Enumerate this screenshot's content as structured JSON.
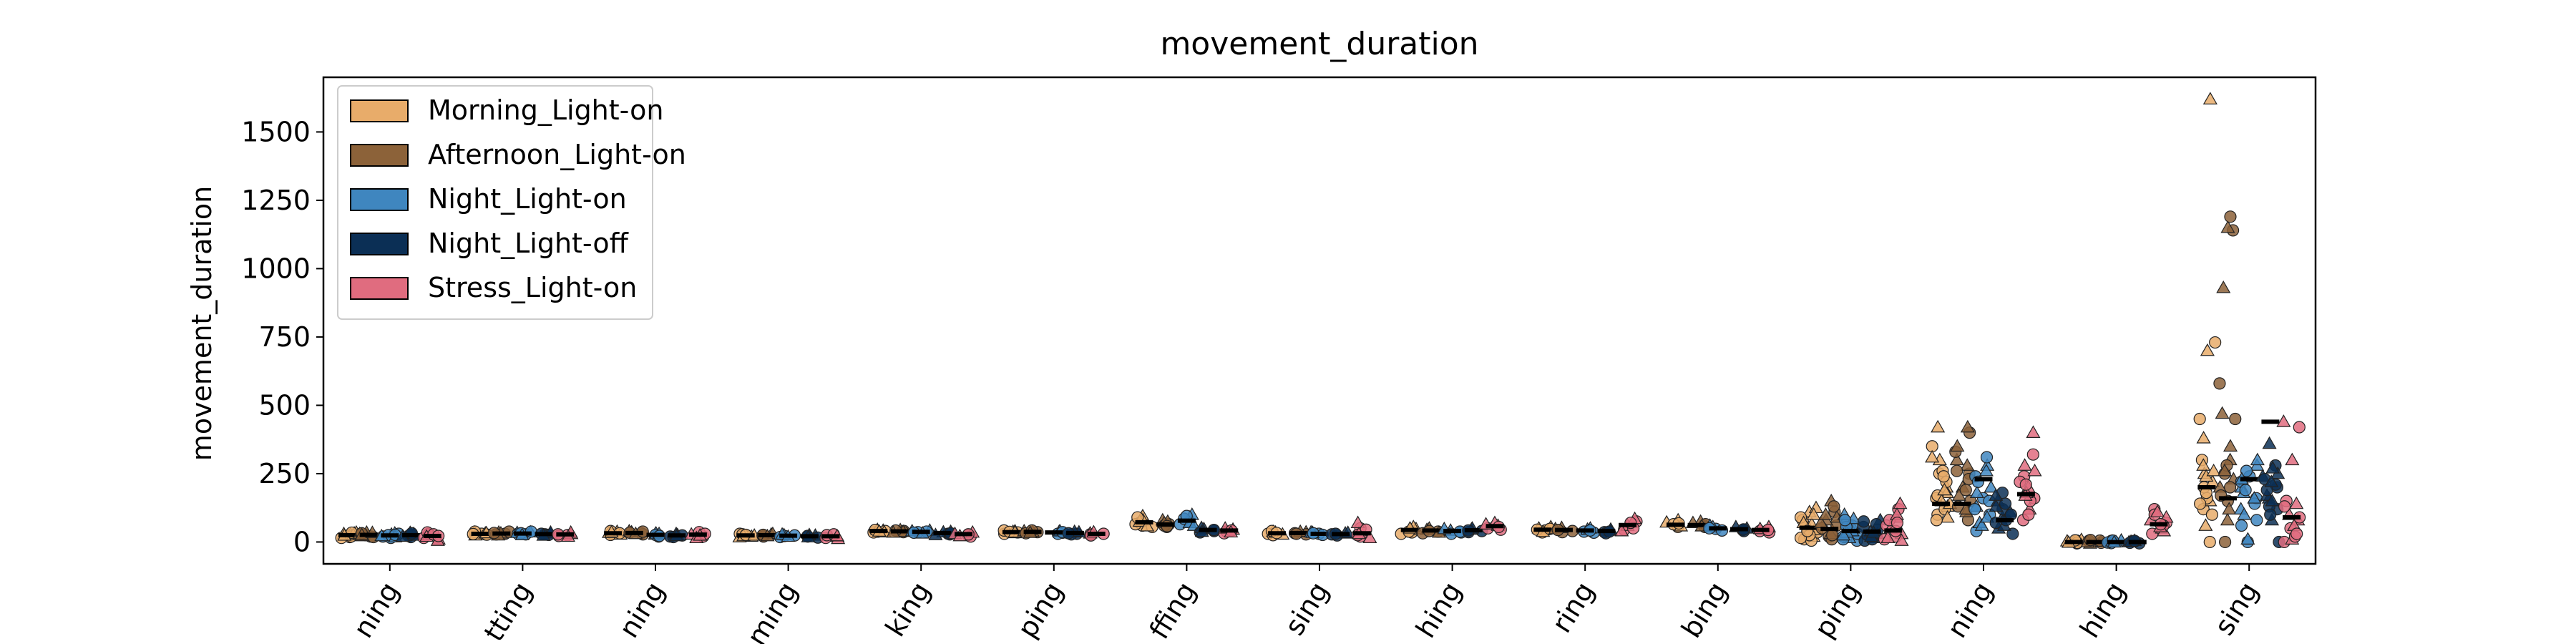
{
  "chart_data": {
    "type": "scatter",
    "title": "movement_duration",
    "xlabel": "",
    "ylabel": "movement_duration",
    "ylim": [
      -80,
      1700
    ],
    "yticks": [
      0,
      250,
      500,
      750,
      1000,
      1250,
      1500
    ],
    "grid": false,
    "legend_position": "top-left",
    "categories": [
      "ning",
      "tting",
      "ning",
      "ming",
      "king",
      "ping",
      "ffing",
      "sing",
      "hing",
      "ring",
      "bing",
      "ping",
      "ning",
      "hing",
      "sing"
    ],
    "series": [
      {
        "name": "Morning_Light-on",
        "color": "#e8ac6a",
        "values": [
          [
            22,
            30,
            18,
            35,
            25,
            28,
            15,
            32,
            20,
            26,
            34,
            24
          ],
          [
            28,
            35,
            30,
            25,
            38,
            32,
            27,
            33,
            29
          ],
          [
            30,
            38,
            26,
            34,
            40,
            28,
            32,
            36
          ],
          [
            25,
            20,
            30,
            18,
            28,
            22,
            26,
            24
          ],
          [
            38,
            42,
            35,
            45,
            40,
            36,
            44,
            39
          ],
          [
            35,
            40,
            30,
            38,
            42,
            33,
            37,
            36
          ],
          [
            70,
            85,
            60,
            95,
            55,
            80,
            65,
            75,
            90,
            58
          ],
          [
            30,
            38,
            25,
            35,
            40,
            28,
            33
          ],
          [
            40,
            48,
            35,
            55,
            30,
            45,
            38,
            50
          ],
          [
            42,
            50,
            35,
            55,
            45,
            38,
            48
          ],
          [
            60,
            72,
            55,
            80,
            65,
            58,
            68
          ],
          [
            10,
            20,
            35,
            55,
            80,
            110,
            5,
            45,
            25,
            65,
            90,
            125,
            15,
            70,
            40,
            100
          ],
          [
            100,
            130,
            160,
            200,
            250,
            300,
            350,
            420,
            120,
            180,
            220,
            140,
            260,
            90,
            170,
            310,
            80,
            150,
            240,
            190
          ],
          [
            -5,
            0,
            5,
            8,
            -3,
            3,
            6,
            -2
          ],
          [
            0,
            60,
            120,
            150,
            200,
            250,
            300,
            380,
            450,
            700,
            730,
            1620,
            160,
            220,
            100,
            280,
            180,
            240,
            140,
            260
          ]
        ],
        "medians": [
          25,
          30,
          32,
          24,
          40,
          36,
          72,
          32,
          44,
          45,
          63,
          52,
          140,
          0,
          200
        ]
      },
      {
        "name": "Afternoon_Light-on",
        "color": "#8c6239",
        "values": [
          [
            25,
            30,
            20,
            35,
            28,
            22,
            32,
            26,
            18,
            34
          ],
          [
            30,
            35,
            28,
            32,
            38,
            25,
            33
          ],
          [
            32,
            36,
            28,
            40,
            34,
            30,
            38
          ],
          [
            24,
            28,
            20,
            30,
            26,
            22
          ],
          [
            40,
            44,
            36,
            38,
            42,
            35
          ],
          [
            36,
            40,
            32,
            38,
            42,
            34
          ],
          [
            65,
            75,
            55,
            80,
            60,
            70,
            58
          ],
          [
            32,
            36,
            28,
            38,
            30
          ],
          [
            38,
            45,
            32,
            50,
            40,
            35
          ],
          [
            40,
            48,
            36,
            52,
            44
          ],
          [
            60,
            70,
            55,
            75,
            65,
            58
          ],
          [
            20,
            40,
            60,
            80,
            110,
            150,
            10,
            30,
            50,
            90,
            130,
            70,
            25,
            100
          ],
          [
            80,
            110,
            150,
            200,
            250,
            300,
            330,
            350,
            400,
            420,
            130,
            170,
            230,
            280,
            190,
            120,
            260
          ],
          [
            -3,
            2,
            5,
            -5,
            4,
            0,
            7
          ],
          [
            0,
            80,
            150,
            200,
            250,
            300,
            450,
            470,
            580,
            930,
            1140,
            1150,
            1190,
            120,
            170,
            230,
            280,
            350,
            200,
            260
          ]
        ],
        "medians": [
          26,
          31,
          33,
          25,
          39,
          37,
          64,
          33,
          42,
          44,
          62,
          48,
          140,
          0,
          160
        ]
      },
      {
        "name": "Night_Light-on",
        "color": "#3f86bf",
        "values": [
          [
            20,
            28,
            15,
            32,
            25,
            22,
            30,
            18,
            26
          ],
          [
            30,
            34,
            28,
            36,
            32,
            26,
            38
          ],
          [
            20,
            28,
            24,
            32,
            26,
            30,
            22
          ],
          [
            22,
            26,
            18,
            28,
            24,
            20
          ],
          [
            36,
            40,
            34,
            42,
            38,
            32
          ],
          [
            34,
            38,
            30,
            40,
            36
          ],
          [
            75,
            90,
            65,
            100,
            85,
            70,
            95,
            60
          ],
          [
            30,
            36,
            26,
            34,
            32
          ],
          [
            35,
            42,
            30,
            48,
            38
          ],
          [
            38,
            46,
            34,
            50,
            42
          ],
          [
            48,
            55,
            42,
            60,
            50
          ],
          [
            5,
            15,
            30,
            50,
            70,
            100,
            20,
            40,
            60,
            85,
            10,
            35,
            55,
            25,
            80
          ],
          [
            40,
            70,
            100,
            130,
            160,
            200,
            240,
            280,
            310,
            60,
            120,
            180,
            220,
            90,
            150,
            260
          ],
          [
            -4,
            0,
            4,
            6,
            -2,
            3,
            5,
            -1
          ],
          [
            0,
            10,
            60,
            120,
            160,
            200,
            240,
            280,
            140,
            180,
            220,
            100,
            80,
            160,
            260,
            300,
            190,
            230
          ]
        ],
        "medians": [
          24,
          31,
          26,
          23,
          37,
          35,
          78,
          30,
          40,
          42,
          50,
          40,
          230,
          0,
          230
        ]
      },
      {
        "name": "Night_Light-off",
        "color": "#0b2f55",
        "values": [
          [
            22,
            30,
            18,
            34,
            26,
            24,
            32,
            20
          ],
          [
            28,
            32,
            26,
            35,
            30,
            24
          ],
          [
            20,
            26,
            18,
            30,
            24,
            22
          ],
          [
            20,
            24,
            16,
            26,
            22,
            18
          ],
          [
            30,
            36,
            28,
            38,
            32,
            26
          ],
          [
            30,
            36,
            28,
            38,
            32
          ],
          [
            40,
            48,
            35,
            52,
            44,
            38
          ],
          [
            28,
            32,
            24,
            34,
            30
          ],
          [
            40,
            46,
            36,
            50,
            42
          ],
          [
            36,
            42,
            32,
            46,
            38
          ],
          [
            44,
            50,
            40,
            55,
            46
          ],
          [
            5,
            15,
            25,
            40,
            55,
            80,
            10,
            30,
            45,
            20,
            65,
            35,
            75
          ],
          [
            30,
            50,
            70,
            90,
            120,
            150,
            180,
            60,
            80,
            110,
            140,
            170,
            100,
            130
          ],
          [
            -5,
            0,
            3,
            5,
            -3,
            2,
            4
          ],
          [
            0,
            80,
            120,
            160,
            200,
            240,
            280,
            360,
            130,
            170,
            210,
            250,
            190,
            150,
            230,
            270,
            100,
            220
          ]
        ],
        "medians": [
          25,
          29,
          24,
          21,
          33,
          33,
          44,
          29,
          43,
          40,
          47,
          38,
          80,
          0,
          440
        ]
      },
      {
        "name": "Stress_Light-on",
        "color": "#e06c7f",
        "values": [
          [
            15,
            25,
            30,
            10,
            35,
            20,
            28,
            5,
            22
          ],
          [
            25,
            30,
            22,
            35,
            28,
            20
          ],
          [
            20,
            28,
            36,
            15,
            30,
            24
          ],
          [
            15,
            20,
            25,
            12,
            28,
            22
          ],
          [
            25,
            30,
            20,
            35,
            28,
            22
          ],
          [
            28,
            32,
            24,
            36,
            30
          ],
          [
            38,
            46,
            32,
            50,
            42,
            36
          ],
          [
            20,
            35,
            50,
            70,
            25,
            15,
            45,
            30
          ],
          [
            50,
            60,
            45,
            70,
            55,
            65
          ],
          [
            45,
            60,
            75,
            85,
            50,
            40,
            70
          ],
          [
            40,
            48,
            35,
            55,
            44
          ],
          [
            10,
            30,
            60,
            90,
            120,
            140,
            20,
            50,
            80,
            5,
            40,
            100,
            70,
            15
          ],
          [
            80,
            120,
            160,
            200,
            240,
            280,
            320,
            400,
            150,
            180,
            220,
            260,
            100,
            170,
            210
          ],
          [
            30,
            50,
            70,
            90,
            120,
            40,
            60,
            80,
            100,
            55,
            65,
            110
          ],
          [
            0,
            10,
            50,
            100,
            150,
            300,
            420,
            440,
            20,
            80,
            130,
            60,
            90,
            140,
            30
          ]
        ],
        "medians": [
          22,
          28,
          27,
          21,
          29,
          30,
          42,
          32,
          58,
          62,
          44,
          42,
          175,
          65,
          90
        ]
      }
    ]
  }
}
